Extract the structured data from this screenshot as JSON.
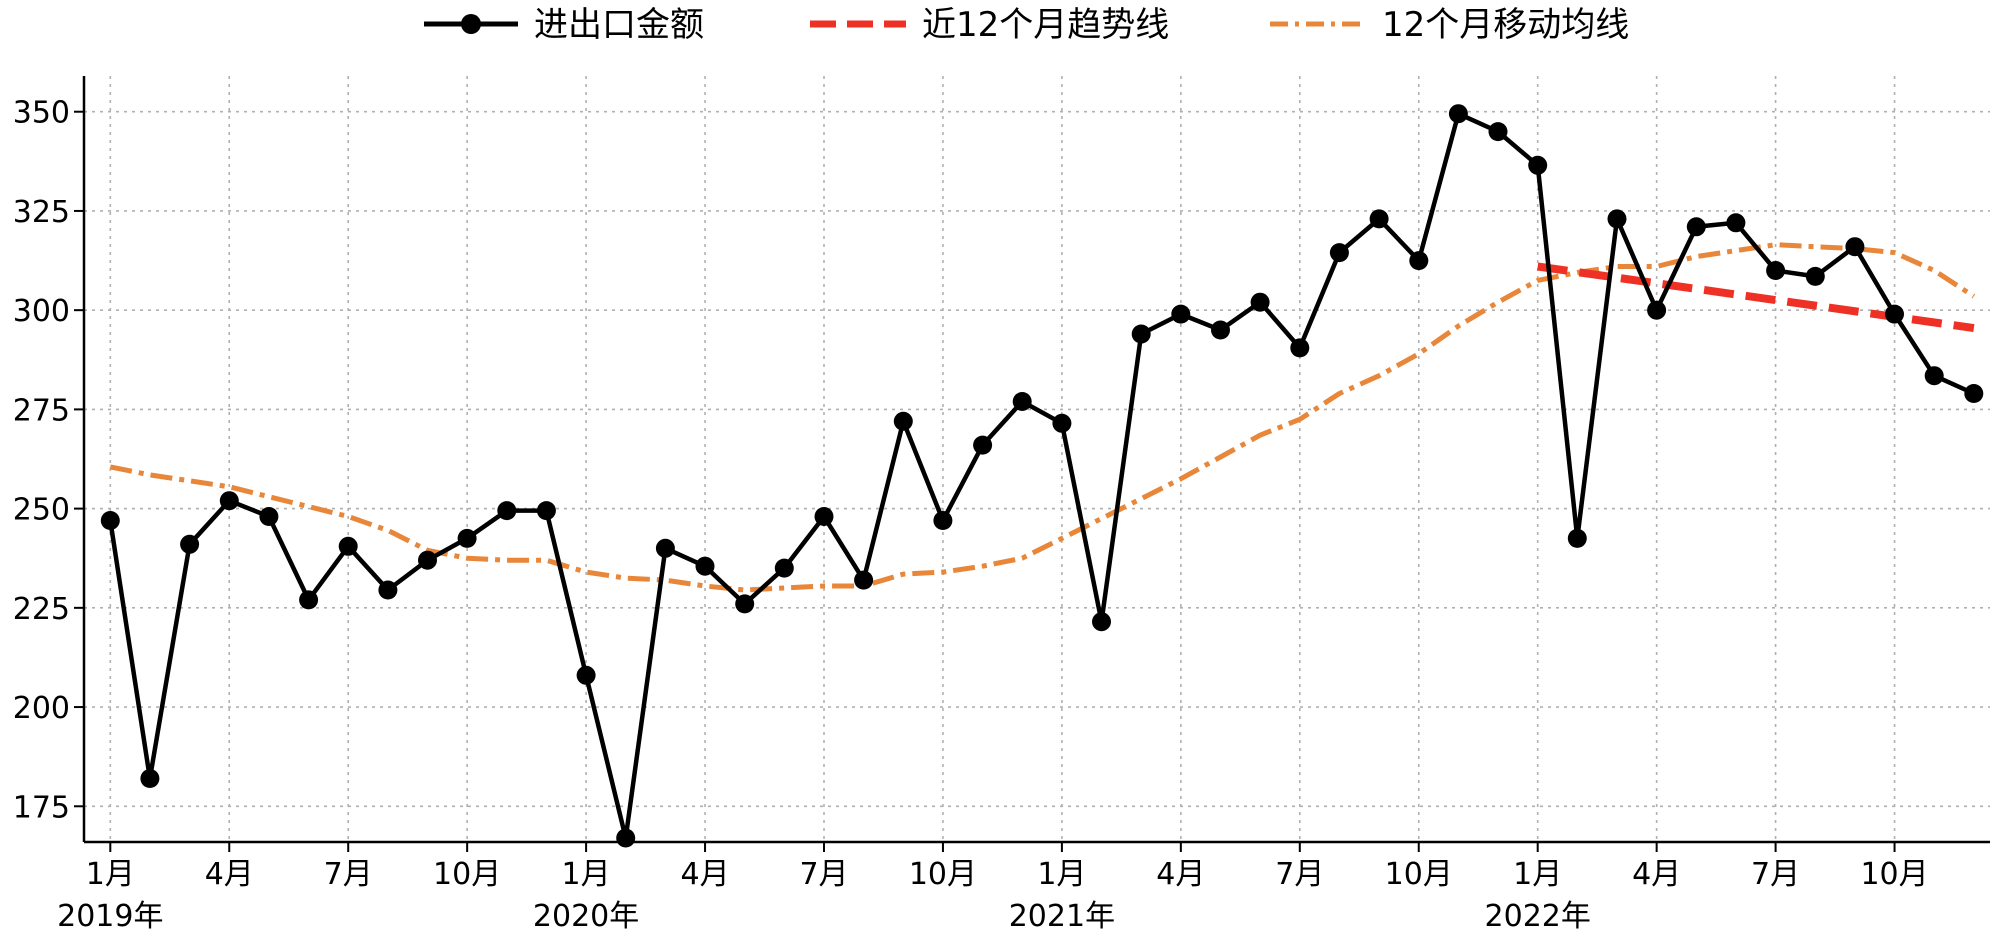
{
  "colors": {
    "actual": "#000000",
    "trend": "#ee3124",
    "moving_average": "#e8873a",
    "grid": "#b0b0b0"
  },
  "chart_data": {
    "type": "line",
    "title": "",
    "xlabel": "",
    "ylabel": "",
    "ylim": [
      166,
      359
    ],
    "y_ticks": [
      175,
      200,
      225,
      250,
      275,
      300,
      325,
      350
    ],
    "x_tick_labels": [
      "1月",
      "4月",
      "7月",
      "10月",
      "1月",
      "4月",
      "7月",
      "10月",
      "1月",
      "4月",
      "7月",
      "10月",
      "1月",
      "4月",
      "7月",
      "10月"
    ],
    "year_labels": [
      "2019年",
      "2020年",
      "2021年",
      "2022年"
    ],
    "grid": true,
    "legend_position": "top-center",
    "x": [
      "2019-01",
      "2019-02",
      "2019-03",
      "2019-04",
      "2019-05",
      "2019-06",
      "2019-07",
      "2019-08",
      "2019-09",
      "2019-10",
      "2019-11",
      "2019-12",
      "2020-01",
      "2020-02",
      "2020-03",
      "2020-04",
      "2020-05",
      "2020-06",
      "2020-07",
      "2020-08",
      "2020-09",
      "2020-10",
      "2020-11",
      "2020-12",
      "2021-01",
      "2021-02",
      "2021-03",
      "2021-04",
      "2021-05",
      "2021-06",
      "2021-07",
      "2021-08",
      "2021-09",
      "2021-10",
      "2021-11",
      "2021-12",
      "2022-01",
      "2022-02",
      "2022-03",
      "2022-04",
      "2022-05",
      "2022-06",
      "2022-07",
      "2022-08",
      "2022-09",
      "2022-10",
      "2022-11",
      "2022-12"
    ],
    "series": [
      {
        "name": "进出口金额",
        "style": "solid-marker",
        "values": [
          247,
          182,
          241,
          252,
          248,
          227,
          240.5,
          229.5,
          237,
          242.5,
          249.5,
          249.5,
          208,
          167,
          240,
          235.5,
          226,
          235,
          248,
          232,
          272,
          247,
          266,
          277,
          271.5,
          221.5,
          294,
          299,
          295,
          302,
          290.5,
          314.5,
          323,
          312.5,
          349.5,
          345,
          336.5,
          242.5,
          323,
          300,
          321,
          322,
          310,
          308.5,
          316,
          299,
          283.5,
          279
        ]
      },
      {
        "name": "近12个月趋势线",
        "style": "dashed",
        "x": [
          "2022-01",
          "2022-12"
        ],
        "values": [
          311,
          295.5
        ]
      },
      {
        "name": "12个月移动均线",
        "style": "dash-dot",
        "values": [
          260.5,
          258.5,
          257,
          255.5,
          253,
          250.5,
          248,
          244.5,
          239.5,
          237.5,
          237,
          237,
          234,
          232.5,
          232,
          230.5,
          229.5,
          230,
          230.5,
          230.5,
          233.5,
          234,
          235.5,
          237.5,
          242.5,
          247.5,
          252.5,
          257.5,
          263,
          268.5,
          272.5,
          279,
          283.5,
          289,
          296,
          302,
          307.5,
          309.5,
          311,
          311,
          313.5,
          315,
          316.5,
          316,
          315.5,
          314.5,
          310,
          303.5
        ]
      }
    ]
  }
}
